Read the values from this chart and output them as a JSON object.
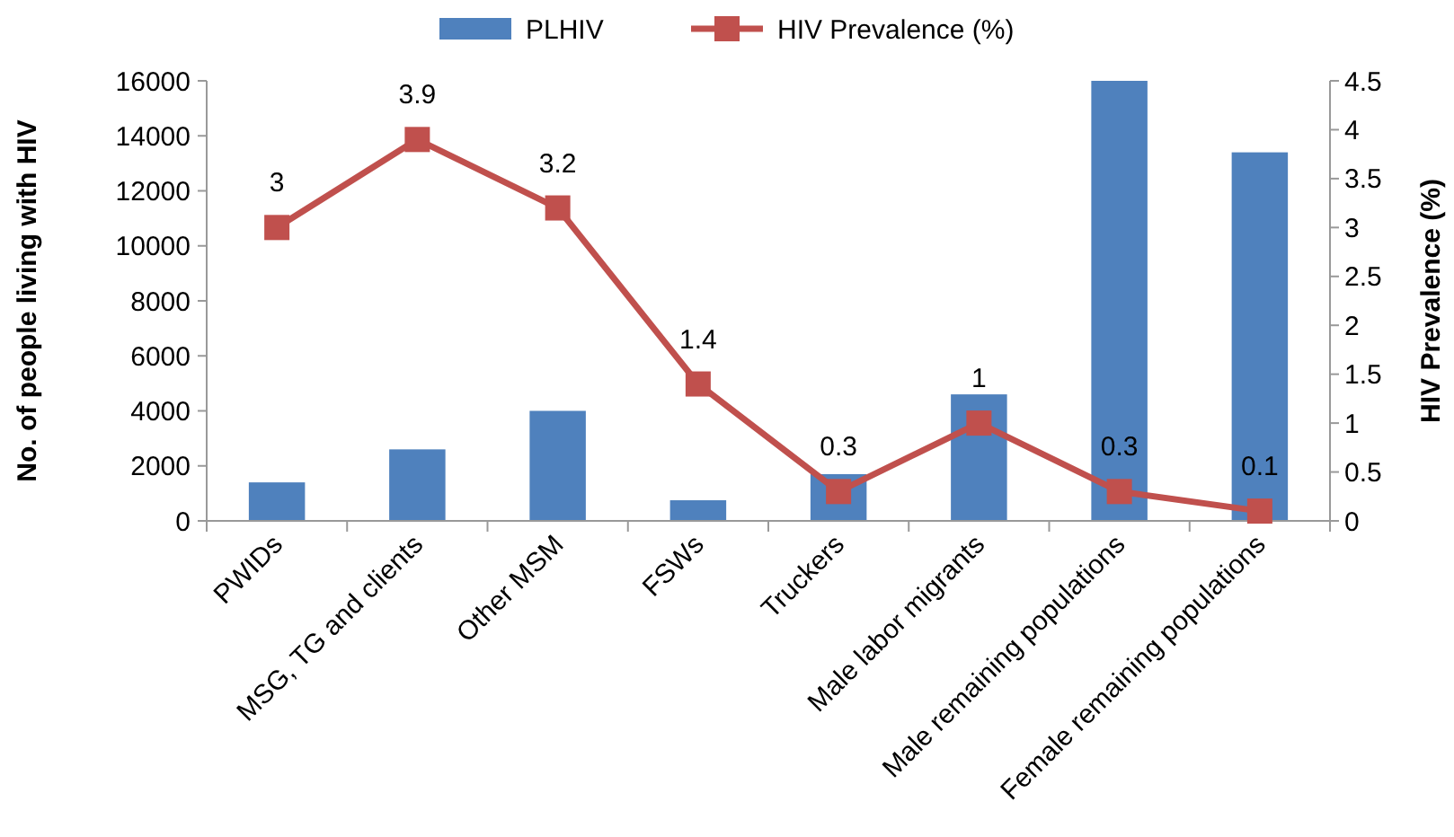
{
  "chart_data": {
    "type": "bar",
    "categories": [
      "PWIDs",
      "MSG, TG and clients",
      "Other MSM",
      "FSWs",
      "Truckers",
      "Male labor migrants",
      "Male remaining populations",
      "Female remaining populations"
    ],
    "series": [
      {
        "name": "PLHIV",
        "color": "#4f81bd",
        "values": [
          1400,
          2600,
          4000,
          750,
          1700,
          4600,
          16000,
          13400
        ]
      },
      {
        "name": "HIV Prevalence (%)",
        "type": "line",
        "axis": "y2",
        "color": "#c0504d",
        "values": [
          3,
          3.9,
          3.2,
          1.4,
          0.3,
          1,
          0.3,
          0.1
        ],
        "data_labels": true
      }
    ],
    "ylabel": "No. of people living with HIV",
    "y2label": "HIV Prevalence (%)",
    "ylim": [
      0,
      16000
    ],
    "yticks": [
      0,
      2000,
      4000,
      6000,
      8000,
      10000,
      12000,
      14000,
      16000
    ],
    "y2lim": [
      0,
      4.5
    ],
    "y2ticks": [
      0,
      0.5,
      1,
      1.5,
      2,
      2.5,
      3,
      3.5,
      4,
      4.5
    ],
    "legend": "top",
    "grid": false,
    "marker": "square",
    "line_style": "solid"
  }
}
